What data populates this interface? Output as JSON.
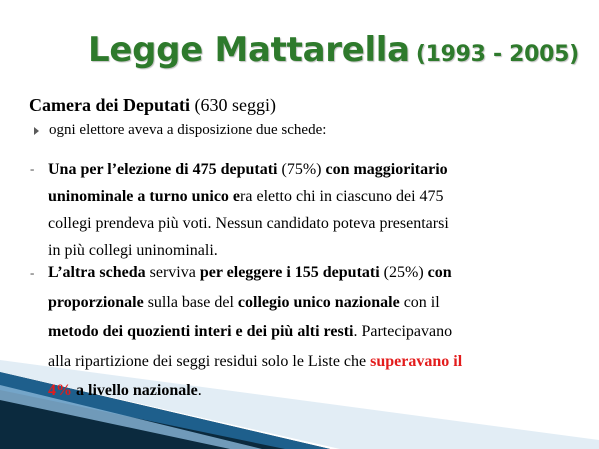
{
  "slide": {
    "title_main": "Legge Mattarella",
    "title_years": "(1993 - 2005)",
    "subhead_bold": "Camera dei Deputati",
    "subhead_rest": "(630 seggi)",
    "bullet_text": "ogni elettore aveva a disposizione due schede:",
    "dash": "-",
    "p1": {
      "l1_bold_a": "Una per l’elezione di 475 deputati",
      "l1_normal": " (75%) ",
      "l1_bold_b": "con maggioritario",
      "l2_bold": "uninominale a turno unico e",
      "l2_normal": "ra eletto  chi in ciascuno  dei 475",
      "l3": "collegi prendeva più voti. Nessun  candidato poteva presentarsi",
      "l4": "in più collegi uninominali."
    },
    "p2": {
      "l1_bold_a": "L’altra scheda",
      "l1_normal_a": " serviva ",
      "l1_bold_b": "per eleggere i 155 deputati",
      "l1_normal_b": " (25%) ",
      "l1_bold_c": "con",
      "l2_bold_a": "proporzionale",
      "l2_normal_a": " sulla base del ",
      "l2_bold_b": "collegio unico nazionale",
      "l2_normal_b": " con il",
      "l3_bold": "metodo dei quozienti interi e dei più alti resti",
      "l3_normal": ". Partecipavano",
      "l4_normal": "alla ripartizione dei seggi  residui solo le Liste che ",
      "l4_red": "superavano il",
      "l5_red": "4%",
      "l5_bold": " a livello nazionale",
      "l5_normal": "."
    }
  },
  "colors": {
    "title_green": "#2e7a2c",
    "highlight_red": "#e31c1c",
    "stripe_dark": "#0b2a3e",
    "stripe_blue": "#1e5f8c",
    "stripe_light": "#8ab6d8"
  }
}
